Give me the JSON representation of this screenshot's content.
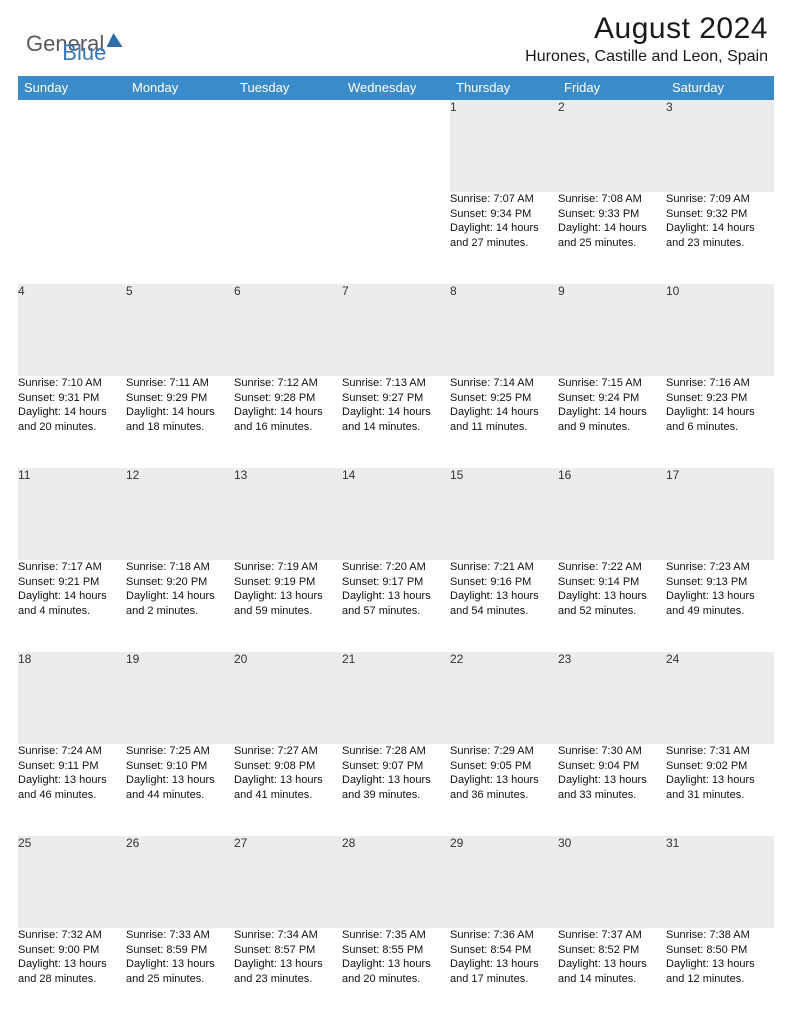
{
  "brand": {
    "part1": "General",
    "part2": "Blue"
  },
  "title": {
    "month_year": "August 2024",
    "location": "Hurones, Castille and Leon, Spain"
  },
  "colors": {
    "header_bg": "#3a8bc9",
    "header_text": "#ffffff",
    "daynum_bg": "#ececec",
    "row_divider": "#2e6ca8",
    "logo_gray": "#5a5a5a",
    "logo_blue": "#3a7ab8",
    "page_bg": "#ffffff"
  },
  "fonts": {
    "title_size_pt": 22,
    "location_size_pt": 12,
    "header_size_pt": 10,
    "body_size_pt": 8
  },
  "daynames": [
    "Sunday",
    "Monday",
    "Tuesday",
    "Wednesday",
    "Thursday",
    "Friday",
    "Saturday"
  ],
  "weeks": [
    [
      null,
      null,
      null,
      null,
      {
        "n": "1",
        "sunrise": "7:07 AM",
        "sunset": "9:34 PM",
        "daylight": "14 hours and 27 minutes."
      },
      {
        "n": "2",
        "sunrise": "7:08 AM",
        "sunset": "9:33 PM",
        "daylight": "14 hours and 25 minutes."
      },
      {
        "n": "3",
        "sunrise": "7:09 AM",
        "sunset": "9:32 PM",
        "daylight": "14 hours and 23 minutes."
      }
    ],
    [
      {
        "n": "4",
        "sunrise": "7:10 AM",
        "sunset": "9:31 PM",
        "daylight": "14 hours and 20 minutes."
      },
      {
        "n": "5",
        "sunrise": "7:11 AM",
        "sunset": "9:29 PM",
        "daylight": "14 hours and 18 minutes."
      },
      {
        "n": "6",
        "sunrise": "7:12 AM",
        "sunset": "9:28 PM",
        "daylight": "14 hours and 16 minutes."
      },
      {
        "n": "7",
        "sunrise": "7:13 AM",
        "sunset": "9:27 PM",
        "daylight": "14 hours and 14 minutes."
      },
      {
        "n": "8",
        "sunrise": "7:14 AM",
        "sunset": "9:25 PM",
        "daylight": "14 hours and 11 minutes."
      },
      {
        "n": "9",
        "sunrise": "7:15 AM",
        "sunset": "9:24 PM",
        "daylight": "14 hours and 9 minutes."
      },
      {
        "n": "10",
        "sunrise": "7:16 AM",
        "sunset": "9:23 PM",
        "daylight": "14 hours and 6 minutes."
      }
    ],
    [
      {
        "n": "11",
        "sunrise": "7:17 AM",
        "sunset": "9:21 PM",
        "daylight": "14 hours and 4 minutes."
      },
      {
        "n": "12",
        "sunrise": "7:18 AM",
        "sunset": "9:20 PM",
        "daylight": "14 hours and 2 minutes."
      },
      {
        "n": "13",
        "sunrise": "7:19 AM",
        "sunset": "9:19 PM",
        "daylight": "13 hours and 59 minutes."
      },
      {
        "n": "14",
        "sunrise": "7:20 AM",
        "sunset": "9:17 PM",
        "daylight": "13 hours and 57 minutes."
      },
      {
        "n": "15",
        "sunrise": "7:21 AM",
        "sunset": "9:16 PM",
        "daylight": "13 hours and 54 minutes."
      },
      {
        "n": "16",
        "sunrise": "7:22 AM",
        "sunset": "9:14 PM",
        "daylight": "13 hours and 52 minutes."
      },
      {
        "n": "17",
        "sunrise": "7:23 AM",
        "sunset": "9:13 PM",
        "daylight": "13 hours and 49 minutes."
      }
    ],
    [
      {
        "n": "18",
        "sunrise": "7:24 AM",
        "sunset": "9:11 PM",
        "daylight": "13 hours and 46 minutes."
      },
      {
        "n": "19",
        "sunrise": "7:25 AM",
        "sunset": "9:10 PM",
        "daylight": "13 hours and 44 minutes."
      },
      {
        "n": "20",
        "sunrise": "7:27 AM",
        "sunset": "9:08 PM",
        "daylight": "13 hours and 41 minutes."
      },
      {
        "n": "21",
        "sunrise": "7:28 AM",
        "sunset": "9:07 PM",
        "daylight": "13 hours and 39 minutes."
      },
      {
        "n": "22",
        "sunrise": "7:29 AM",
        "sunset": "9:05 PM",
        "daylight": "13 hours and 36 minutes."
      },
      {
        "n": "23",
        "sunrise": "7:30 AM",
        "sunset": "9:04 PM",
        "daylight": "13 hours and 33 minutes."
      },
      {
        "n": "24",
        "sunrise": "7:31 AM",
        "sunset": "9:02 PM",
        "daylight": "13 hours and 31 minutes."
      }
    ],
    [
      {
        "n": "25",
        "sunrise": "7:32 AM",
        "sunset": "9:00 PM",
        "daylight": "13 hours and 28 minutes."
      },
      {
        "n": "26",
        "sunrise": "7:33 AM",
        "sunset": "8:59 PM",
        "daylight": "13 hours and 25 minutes."
      },
      {
        "n": "27",
        "sunrise": "7:34 AM",
        "sunset": "8:57 PM",
        "daylight": "13 hours and 23 minutes."
      },
      {
        "n": "28",
        "sunrise": "7:35 AM",
        "sunset": "8:55 PM",
        "daylight": "13 hours and 20 minutes."
      },
      {
        "n": "29",
        "sunrise": "7:36 AM",
        "sunset": "8:54 PM",
        "daylight": "13 hours and 17 minutes."
      },
      {
        "n": "30",
        "sunrise": "7:37 AM",
        "sunset": "8:52 PM",
        "daylight": "13 hours and 14 minutes."
      },
      {
        "n": "31",
        "sunrise": "7:38 AM",
        "sunset": "8:50 PM",
        "daylight": "13 hours and 12 minutes."
      }
    ]
  ],
  "labels": {
    "sunrise": "Sunrise:",
    "sunset": "Sunset:",
    "daylight": "Daylight:"
  }
}
